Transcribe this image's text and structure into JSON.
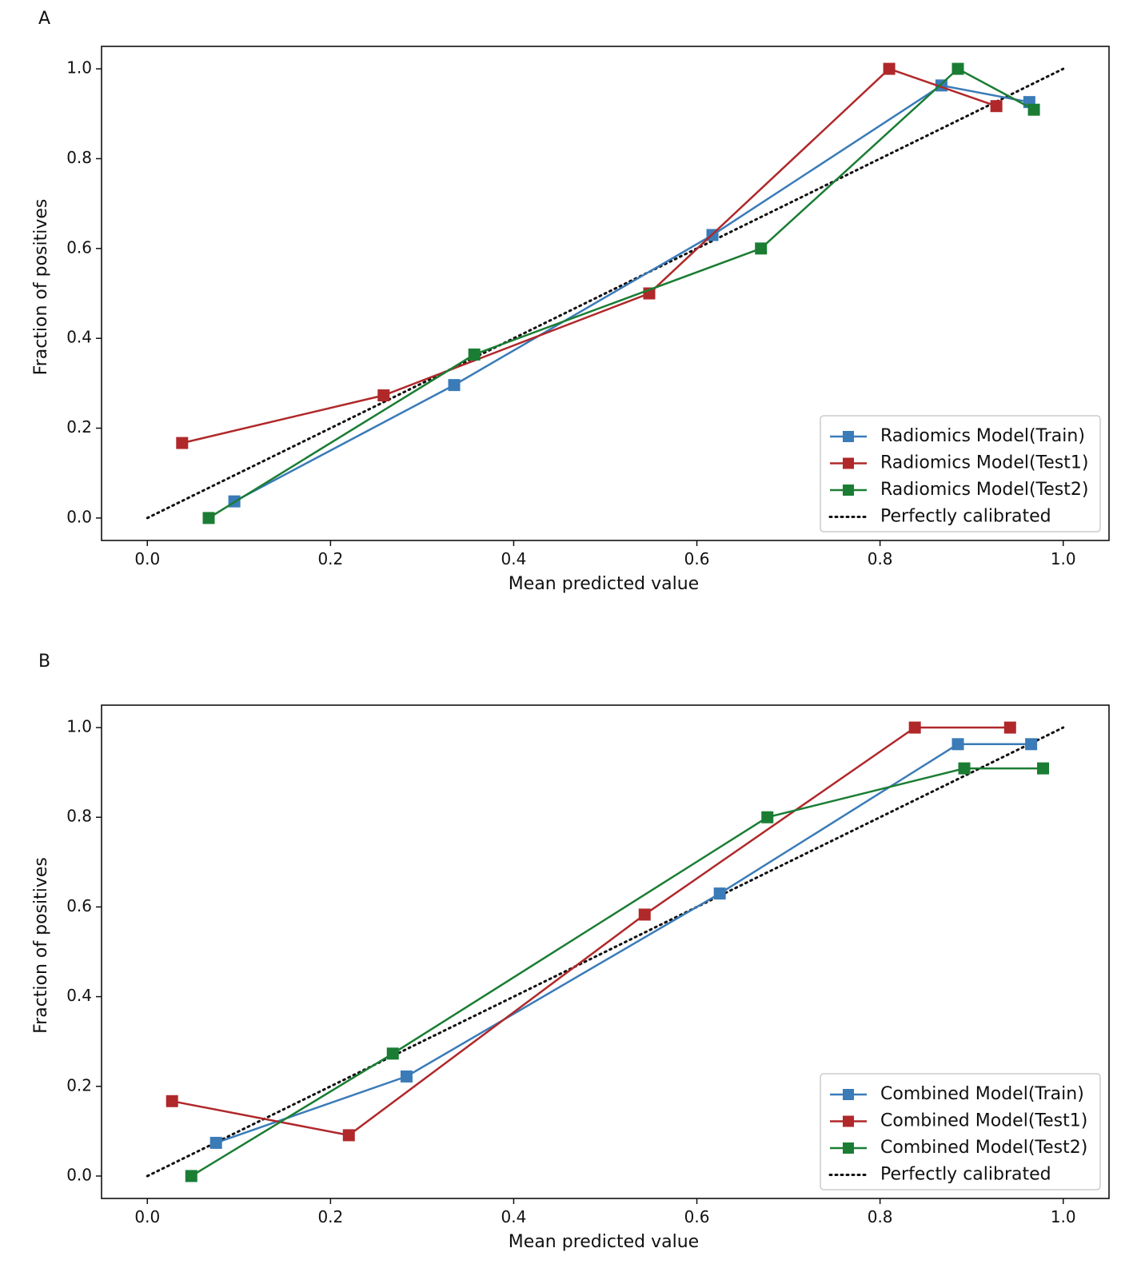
{
  "colors": {
    "train": "#3a7bb8",
    "test1": "#b0282a",
    "test2": "#1a7d33",
    "ideal": "#111111"
  },
  "chart_data": [
    {
      "type": "line",
      "panel_label": "A",
      "xlabel": "Mean predicted value",
      "ylabel": "Fraction of positives",
      "xlim": [
        -0.05,
        1.05
      ],
      "ylim": [
        -0.05,
        1.05
      ],
      "xticks": [
        "0.0",
        "0.2",
        "0.4",
        "0.6",
        "0.8",
        "1.0"
      ],
      "yticks": [
        "0.0",
        "0.2",
        "0.4",
        "0.6",
        "0.8",
        "1.0"
      ],
      "legend_position": "lower-right",
      "series": [
        {
          "name": "Radiomics Model(Train)",
          "color_key": "train",
          "x": [
            0.095,
            0.335,
            0.617,
            0.867,
            0.963
          ],
          "y": [
            0.037,
            0.296,
            0.63,
            0.963,
            0.926
          ]
        },
        {
          "name": "Radiomics Model(Test1)",
          "color_key": "test1",
          "x": [
            0.038,
            0.258,
            0.548,
            0.81,
            0.927
          ],
          "y": [
            0.167,
            0.273,
            0.5,
            1.0,
            0.917
          ]
        },
        {
          "name": "Radiomics Model(Test2)",
          "color_key": "test2",
          "x": [
            0.067,
            0.357,
            0.67,
            0.885,
            0.968
          ],
          "y": [
            0.0,
            0.364,
            0.6,
            1.0,
            0.909
          ]
        },
        {
          "name": "Perfectly calibrated",
          "color_key": "ideal",
          "dotted": true,
          "x": [
            0.0,
            1.0
          ],
          "y": [
            0.0,
            1.0
          ]
        }
      ]
    },
    {
      "type": "line",
      "panel_label": "B",
      "xlabel": "Mean predicted value",
      "ylabel": "Fraction of positives",
      "xlim": [
        -0.05,
        1.05
      ],
      "ylim": [
        -0.05,
        1.05
      ],
      "xticks": [
        "0.0",
        "0.2",
        "0.4",
        "0.6",
        "0.8",
        "1.0"
      ],
      "yticks": [
        "0.0",
        "0.2",
        "0.4",
        "0.6",
        "0.8",
        "1.0"
      ],
      "legend_position": "lower-right",
      "series": [
        {
          "name": "Combined Model(Train)",
          "color_key": "train",
          "x": [
            0.075,
            0.283,
            0.625,
            0.885,
            0.965
          ],
          "y": [
            0.074,
            0.222,
            0.63,
            0.963,
            0.963
          ]
        },
        {
          "name": "Combined Model(Test1)",
          "color_key": "test1",
          "x": [
            0.027,
            0.22,
            0.543,
            0.838,
            0.942
          ],
          "y": [
            0.167,
            0.091,
            0.583,
            1.0,
            1.0
          ]
        },
        {
          "name": "Combined Model(Test2)",
          "color_key": "test2",
          "x": [
            0.048,
            0.268,
            0.677,
            0.892,
            0.978
          ],
          "y": [
            0.0,
            0.273,
            0.8,
            0.909,
            0.909
          ]
        },
        {
          "name": "Perfectly calibrated",
          "color_key": "ideal",
          "dotted": true,
          "x": [
            0.0,
            1.0
          ],
          "y": [
            0.0,
            1.0
          ]
        }
      ]
    }
  ]
}
